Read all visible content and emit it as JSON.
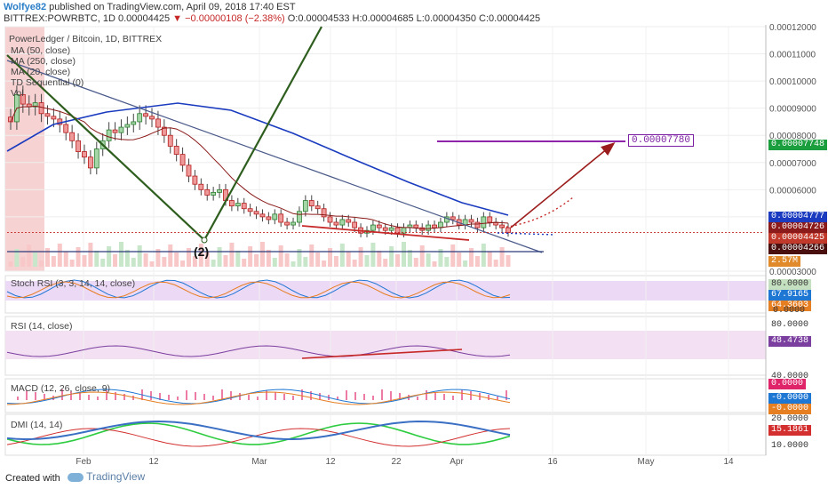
{
  "header": {
    "user": "Wolfye82",
    "published": "published on TradingView.com, April 09, 2018 17:40 EST",
    "symbol": "BITTREX:POWRBTC, 1D",
    "last": "0.00004425",
    "change": "−0.00000108 (−2.38%)",
    "ohlc": "O:0.00004533 H:0.00004685 L:0.00004350 C:0.00004425"
  },
  "overlays": {
    "title": "PowerLedger / Bitcoin, 1D, BITTREX",
    "ma50": "MA (50, close)",
    "ma250": "MA (250, close)",
    "ma20": "MA (20, close)",
    "td": "TD Sequential (0)",
    "vol": "Vol"
  },
  "annotations": {
    "wave": "(2)",
    "target": "0.00007780"
  },
  "panes": {
    "stoch": {
      "label": "Stoch RSI (3, 3, 14, 14, close)",
      "k": "67.9165",
      "d": "64.3603",
      "t1": "80.0000",
      "t2": "0.0000"
    },
    "rsi": {
      "label": "RSI (14, close)",
      "value": "48.4738",
      "t1": "80.0000",
      "t2": "40.0000"
    },
    "macd": {
      "label": "MACD (12, 26, close, 9)",
      "v1": "0.0000",
      "v2": "-0.0000",
      "v3": "-0.0000"
    },
    "dmi": {
      "label": "DMI (14, 14)",
      "v1": "20.0000",
      "v2": "15.1861",
      "t1": "10.0000"
    }
  },
  "badges": [
    {
      "text": "0.00007748",
      "color": "#1b9e3e"
    },
    {
      "text": "0.00004777",
      "color": "#1a3bbf"
    },
    {
      "text": "0.00004726",
      "color": "#8b1a1a"
    },
    {
      "text": "0.00004425",
      "color": "#c0392b"
    },
    {
      "text": "0.00004266",
      "color": "#4a1010"
    },
    {
      "text": "2.57M",
      "color": "#e08a2c"
    }
  ],
  "footer": {
    "created": "Created with",
    "brand": "TradingView"
  },
  "chart_data": {
    "type": "candlestick",
    "title": "PowerLedger / Bitcoin, 1D, BITTREX",
    "ylim": [
      3e-05,
      0.00012
    ],
    "y_ticks": [
      "0.00012000",
      "0.00011000",
      "0.00010000",
      "0.00009000",
      "0.00008000",
      "0.00007000",
      "0.00006000",
      "0.00005000",
      "0.00003000"
    ],
    "x_ticks": [
      "Feb",
      "12",
      "Mar",
      "12",
      "22",
      "Apr",
      "16",
      "May",
      "14"
    ],
    "close_series": [
      8.5e-05,
      9.5e-05,
      9.15e-05,
      9.05e-05,
      9.2e-05,
      8.8e-05,
      8.7e-05,
      8.6e-05,
      8.4e-05,
      8.1e-05,
      7.8e-05,
      7.4e-05,
      7.2e-05,
      6.8e-05,
      7.5e-05,
      7.8e-05,
      8.2e-05,
      8.1e-05,
      8.3e-05,
      8.4e-05,
      8.5e-05,
      8.8e-05,
      8.7e-05,
      8.6e-05,
      8.3e-05,
      8e-05,
      7.6e-05,
      7.3e-05,
      6.9e-05,
      6.5e-05,
      6.2e-05,
      6e-05,
      5.8e-05,
      5.9e-05,
      6e-05,
      5.6e-05,
      5.4e-05,
      5.5e-05,
      5.3e-05,
      5.2e-05,
      5.1e-05,
      5e-05,
      4.9e-05,
      5.1e-05,
      4.8e-05,
      4.7e-05,
      4.8e-05,
      5.2e-05,
      5.6e-05,
      5.4e-05,
      5.3e-05,
      5e-05,
      4.8e-05,
      4.7e-05,
      4.9e-05,
      4.8e-05,
      4.6e-05,
      4.4e-05,
      4.5e-05,
      4.7e-05,
      4.6e-05,
      4.5e-05,
      4.6e-05,
      4.4e-05,
      4.6e-05,
      4.7e-05,
      4.6e-05,
      4.5e-05,
      4.7e-05,
      4.6e-05,
      4.8e-05,
      5e-05,
      4.9e-05,
      4.7e-05,
      4.9e-05,
      4.8e-05,
      4.6e-05,
      5e-05,
      4.8e-05,
      4.7e-05,
      4.6e-05,
      4.425e-05
    ],
    "target_price": 7.78e-05,
    "last_price": 4.425e-05
  }
}
